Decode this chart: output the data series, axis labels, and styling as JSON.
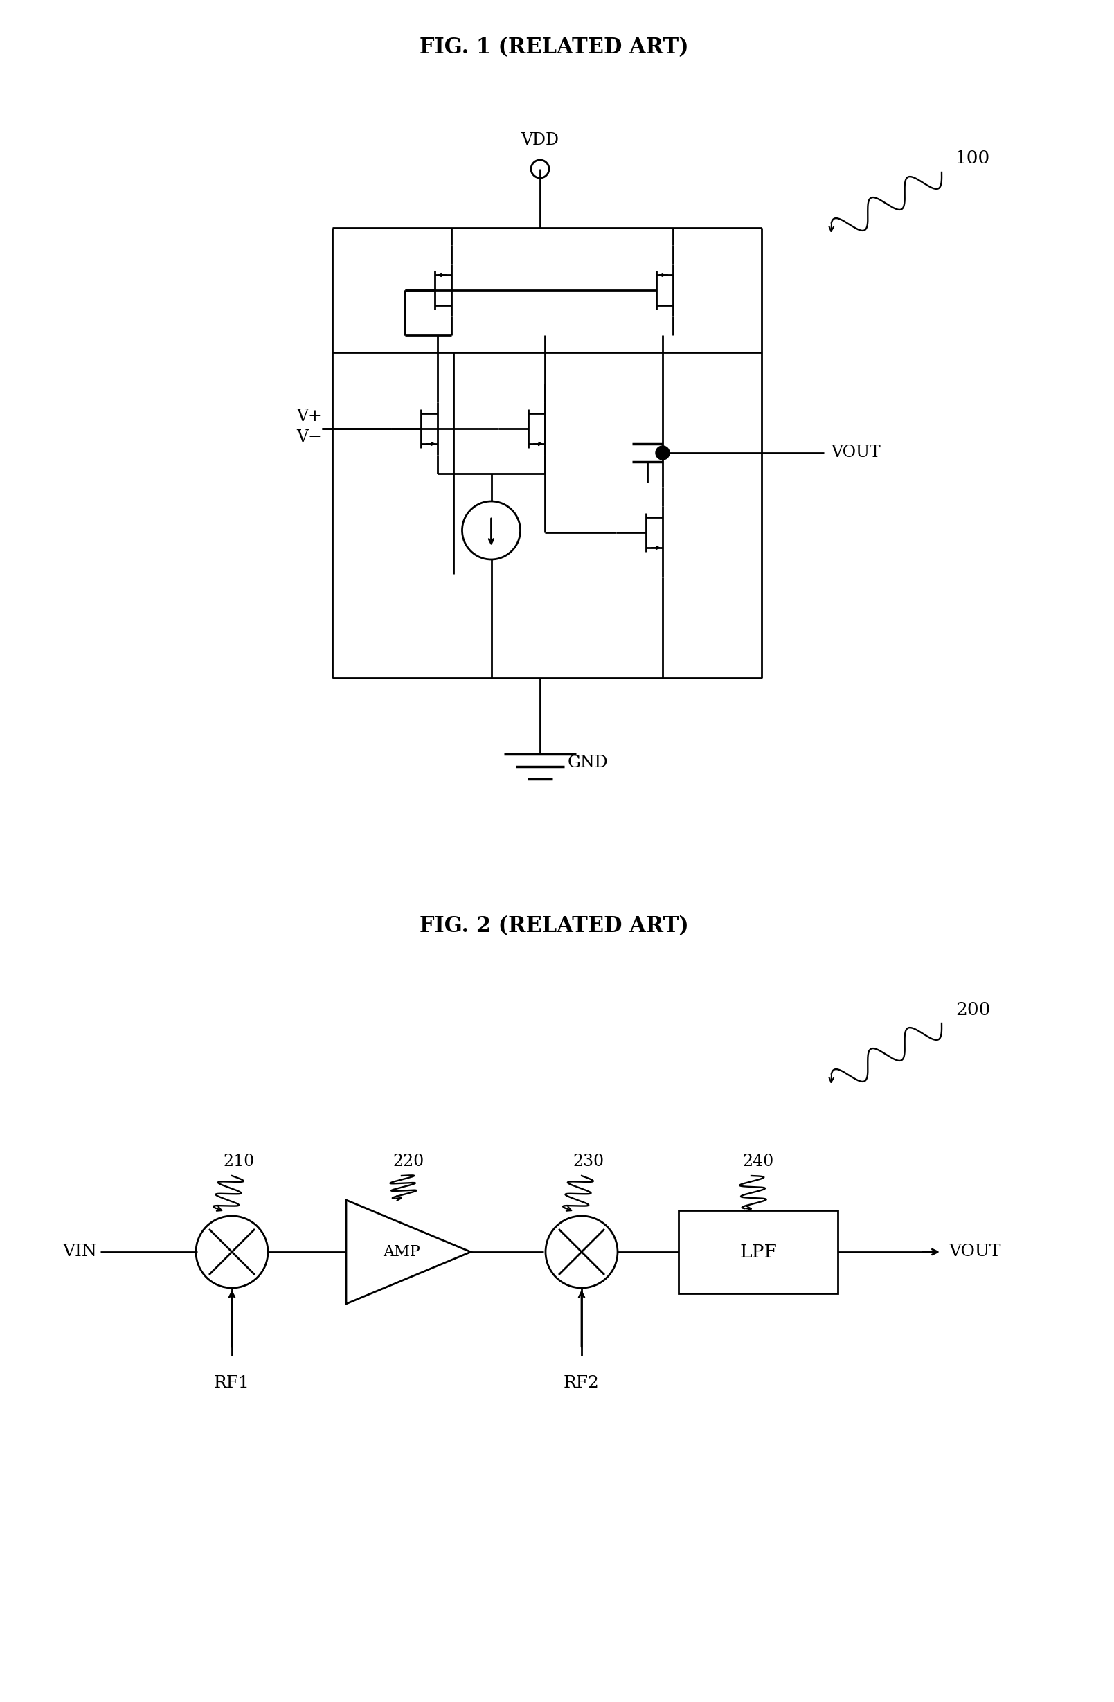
{
  "fig1_title": "FIG. 1 (RELATED ART)",
  "fig2_title": "FIG. 2 (RELATED ART)",
  "background_color": "#ffffff",
  "line_color": "#000000",
  "label_100": "100",
  "label_200": "200",
  "label_VDD": "VDD",
  "label_GND": "GND",
  "label_VOUT1": "VOUT",
  "label_Vplus": "V+",
  "label_Vminus": "V−",
  "label_VIN": "VIN",
  "label_VOUT2": "VOUT",
  "label_RF1": "RF1",
  "label_RF2": "RF2",
  "label_AMP": "AMP",
  "label_LPF": "LPF",
  "label_210": "210",
  "label_220": "220",
  "label_230": "230",
  "label_240": "240",
  "font_size_title": 22,
  "font_size_label": 16,
  "font_size_number": 17
}
